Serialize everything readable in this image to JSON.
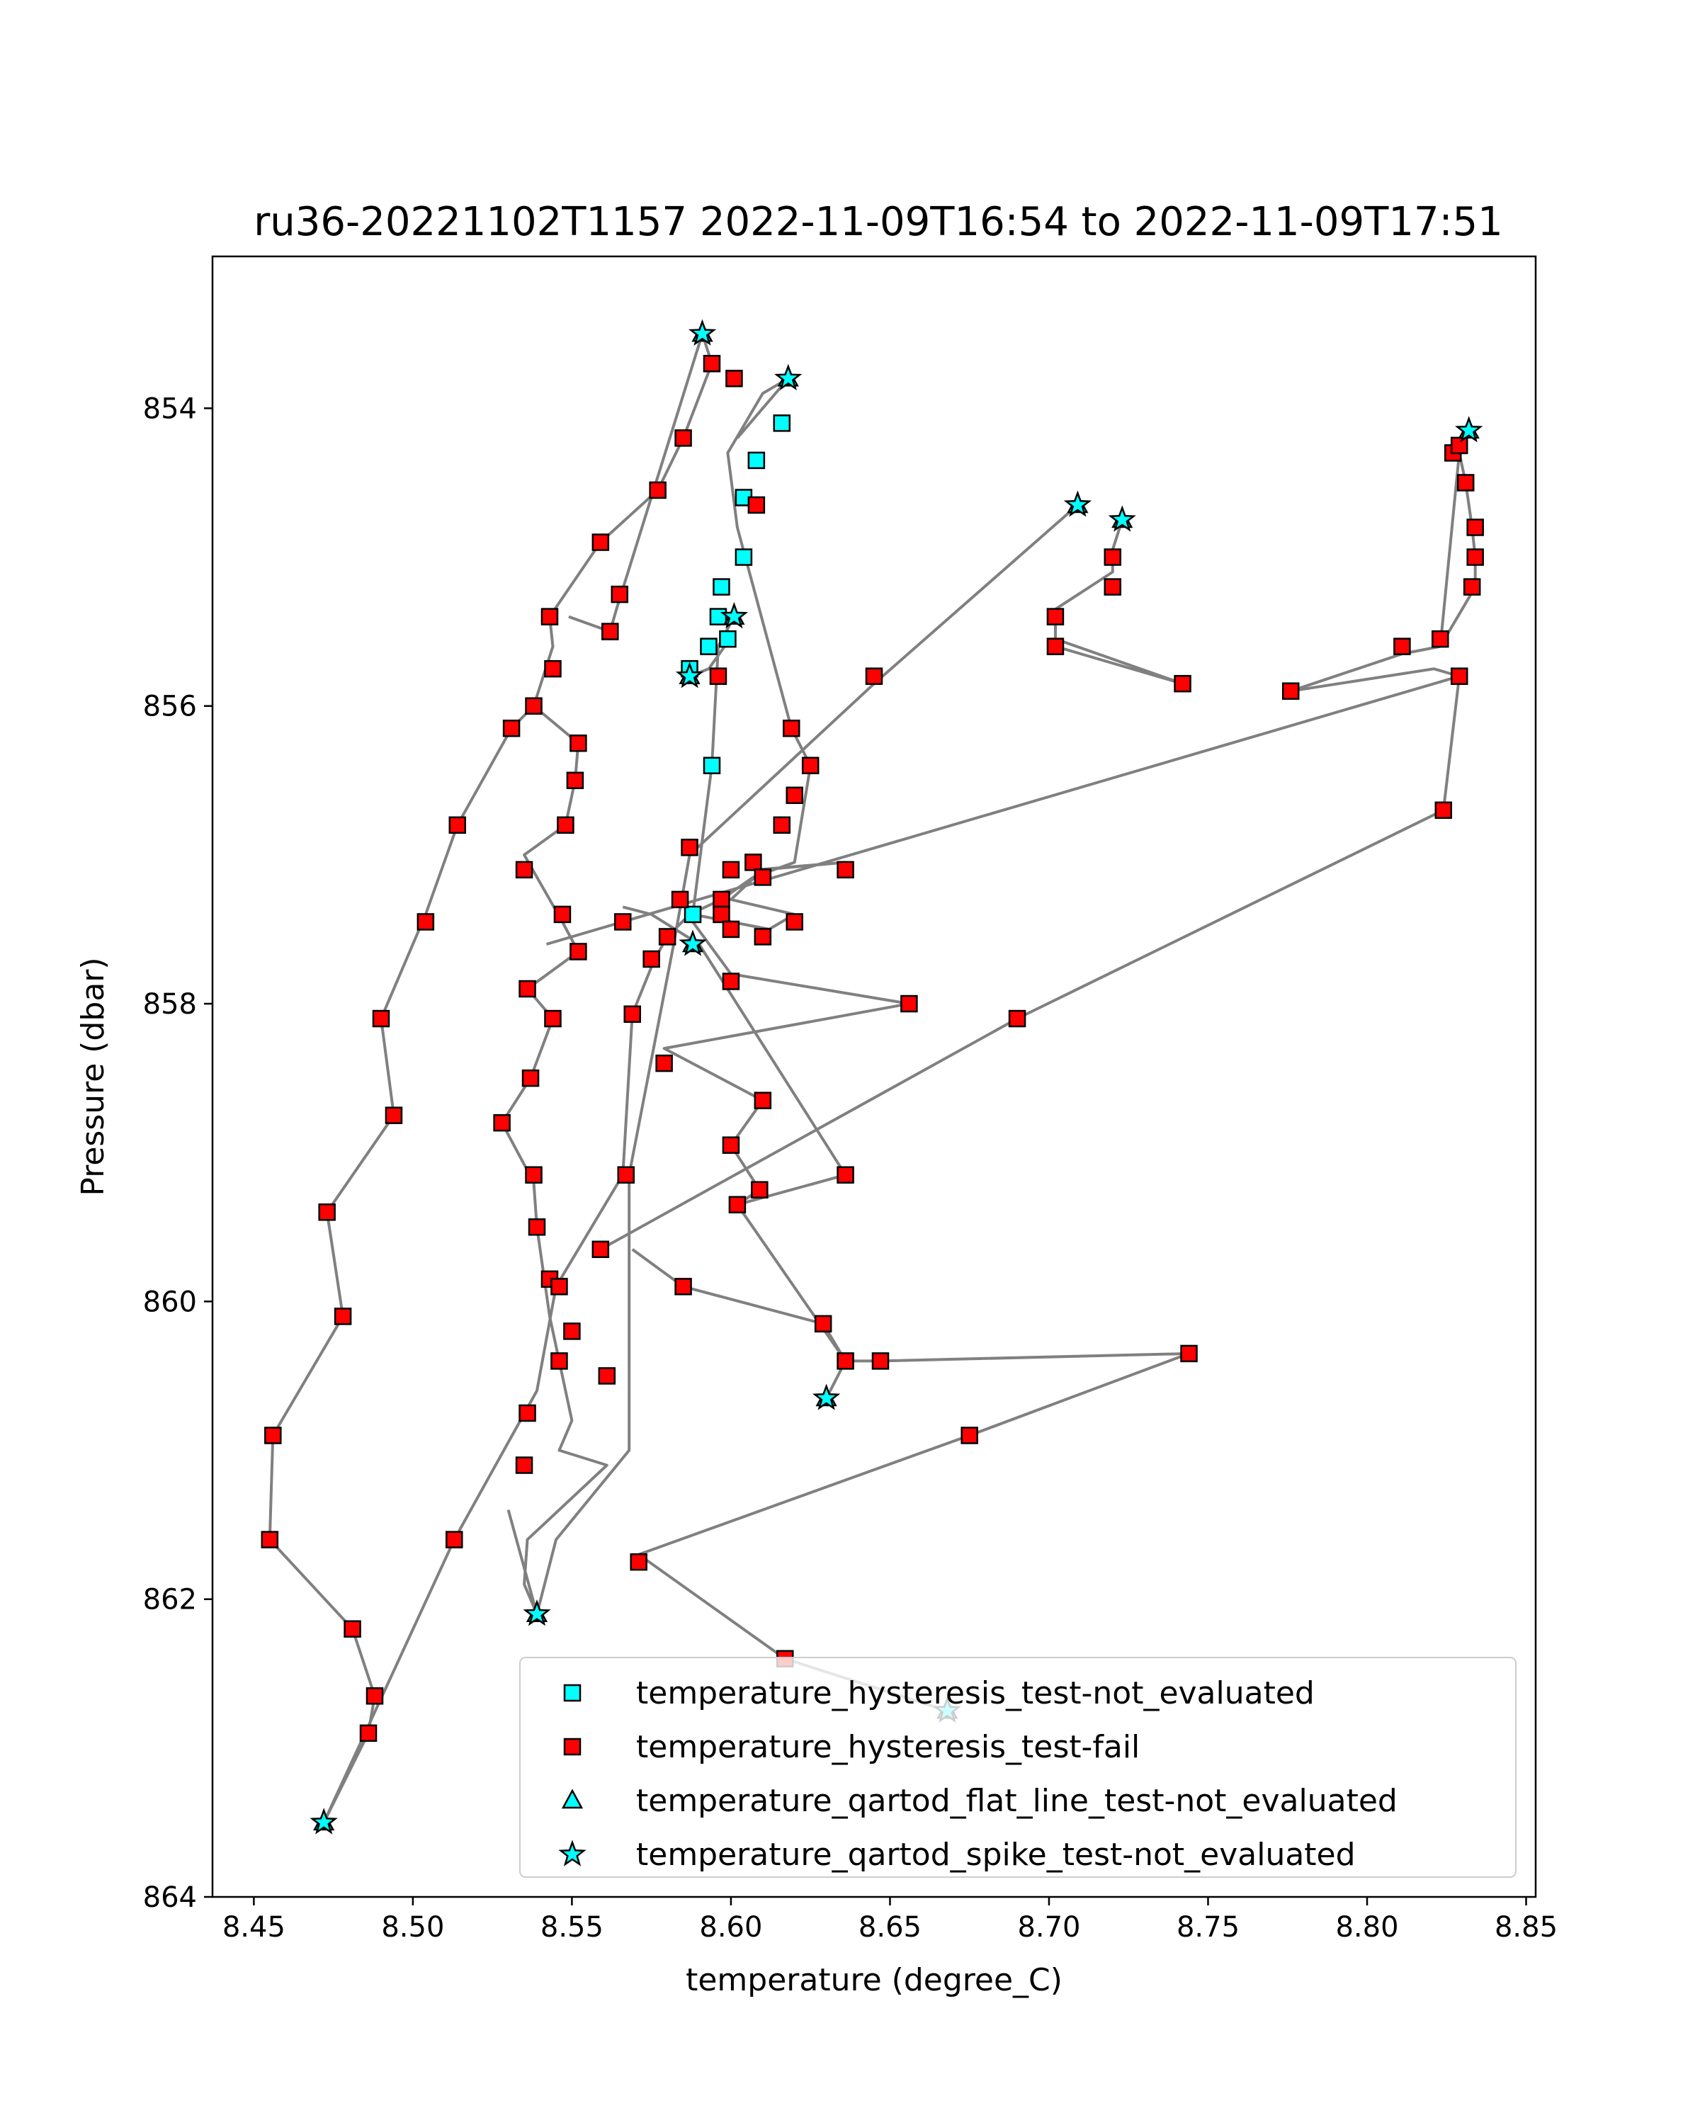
{
  "chart_data": {
    "type": "scatter",
    "title": "ru36-20221102T1157 2022-11-09T16:54 to 2022-11-09T17:51",
    "xlabel": "temperature (degree_C)",
    "ylabel": "Pressure (dbar)",
    "xlim": [
      8.437,
      8.853
    ],
    "ylim": [
      864.0,
      852.98
    ],
    "y_inverted": true,
    "grid": false,
    "legend_position": "lower-right",
    "xticks": [
      "8.45",
      "8.50",
      "8.55",
      "8.60",
      "8.65",
      "8.70",
      "8.75",
      "8.80",
      "8.85"
    ],
    "xtick_values": [
      8.45,
      8.5,
      8.55,
      8.6,
      8.65,
      8.7,
      8.75,
      8.8,
      8.85
    ],
    "yticks": [
      "854",
      "856",
      "858",
      "860",
      "862",
      "864"
    ],
    "ytick_values": [
      854,
      856,
      858,
      860,
      862,
      864
    ],
    "line_color": "#808080",
    "profiles": [
      [
        [
          8.591,
          853.5
        ],
        [
          8.594,
          853.7
        ],
        [
          8.585,
          854.2
        ],
        [
          8.577,
          854.55
        ],
        [
          8.559,
          854.9
        ],
        [
          8.543,
          855.4
        ],
        [
          8.544,
          855.6
        ],
        [
          8.538,
          856.0
        ],
        [
          8.531,
          856.15
        ],
        [
          8.514,
          856.8
        ],
        [
          8.504,
          857.4
        ],
        [
          8.49,
          858.1
        ],
        [
          8.494,
          858.75
        ],
        [
          8.473,
          859.4
        ],
        [
          8.478,
          860.1
        ],
        [
          8.456,
          860.9
        ],
        [
          8.455,
          861.6
        ],
        [
          8.481,
          862.2
        ],
        [
          8.488,
          862.65
        ],
        [
          8.486,
          862.9
        ],
        [
          8.472,
          863.5
        ]
      ],
      [
        [
          8.472,
          863.5
        ],
        [
          8.513,
          861.6
        ],
        [
          8.539,
          860.6
        ],
        [
          8.545,
          859.9
        ],
        [
          8.566,
          859.15
        ],
        [
          8.569,
          858.07
        ],
        [
          8.576,
          857.7
        ],
        [
          8.58,
          857.55
        ],
        [
          8.587,
          857.4
        ],
        [
          8.597,
          857.3
        ],
        [
          8.607,
          857.15
        ],
        [
          8.62,
          857.05
        ],
        [
          8.625,
          856.4
        ],
        [
          8.619,
          856.15
        ],
        [
          8.602,
          854.8
        ],
        [
          8.599,
          854.3
        ],
        [
          8.61,
          853.9
        ],
        [
          8.618,
          853.8
        ]
      ],
      [
        [
          8.601,
          855.4
        ],
        [
          8.596,
          855.6
        ],
        [
          8.594,
          856.4
        ],
        [
          8.588,
          857.4
        ]
      ],
      [
        [
          8.587,
          855.8
        ],
        [
          8.593,
          855.75
        ],
        [
          8.598,
          855.6
        ]
      ],
      [
        [
          8.602,
          854.2
        ],
        [
          8.618,
          853.8
        ]
      ],
      [
        [
          8.591,
          853.5
        ],
        [
          8.564,
          855.35
        ],
        [
          8.562,
          855.5
        ],
        [
          8.549,
          855.4
        ]
      ],
      [
        [
          8.53,
          861.4
        ],
        [
          8.539,
          862.1
        ],
        [
          8.535,
          861.9
        ],
        [
          8.536,
          861.6
        ],
        [
          8.561,
          861.1
        ],
        [
          8.546,
          861.0
        ],
        [
          8.55,
          860.8
        ],
        [
          8.543,
          860.1
        ],
        [
          8.539,
          859.5
        ],
        [
          8.538,
          859.2
        ],
        [
          8.528,
          858.8
        ],
        [
          8.537,
          858.5
        ],
        [
          8.544,
          858.1
        ],
        [
          8.536,
          857.9
        ],
        [
          8.552,
          857.65
        ],
        [
          8.547,
          857.45
        ],
        [
          8.535,
          857.0
        ],
        [
          8.548,
          856.8
        ],
        [
          8.551,
          856.5
        ],
        [
          8.552,
          856.25
        ],
        [
          8.538,
          856.0
        ]
      ],
      [
        [
          8.539,
          862.1
        ],
        [
          8.545,
          861.6
        ],
        [
          8.568,
          861.0
        ],
        [
          8.568,
          859.15
        ],
        [
          8.582,
          857.6
        ],
        [
          8.587,
          857.0
        ],
        [
          8.645,
          855.85
        ],
        [
          8.709,
          854.65
        ]
      ],
      [
        [
          8.569,
          859.65
        ],
        [
          8.585,
          859.9
        ],
        [
          8.629,
          860.15
        ],
        [
          8.636,
          860.4
        ],
        [
          8.647,
          860.4
        ],
        [
          8.744,
          860.35
        ]
      ],
      [
        [
          8.744,
          860.35
        ],
        [
          8.675,
          860.9
        ],
        [
          8.571,
          861.7
        ],
        [
          8.617,
          862.4
        ],
        [
          8.668,
          862.75
        ]
      ],
      [
        [
          8.63,
          860.65
        ],
        [
          8.636,
          860.4
        ],
        [
          8.602,
          859.35
        ],
        [
          8.609,
          859.25
        ],
        [
          8.6,
          858.95
        ],
        [
          8.61,
          858.65
        ],
        [
          8.579,
          858.3
        ],
        [
          8.656,
          858.0
        ],
        [
          8.6,
          857.8
        ],
        [
          8.588,
          857.45
        ]
      ],
      [
        [
          8.559,
          859.65
        ],
        [
          8.69,
          858.1
        ],
        [
          8.824,
          856.7
        ],
        [
          8.829,
          855.8
        ],
        [
          8.821,
          855.75
        ],
        [
          8.776,
          855.9
        ]
      ],
      [
        [
          8.776,
          855.9
        ],
        [
          8.811,
          855.65
        ],
        [
          8.823,
          855.6
        ],
        [
          8.834,
          855.2
        ],
        [
          8.834,
          855.0
        ],
        [
          8.833,
          854.8
        ],
        [
          8.831,
          854.5
        ],
        [
          8.829,
          854.3
        ],
        [
          8.827,
          854.3
        ],
        [
          8.832,
          854.15
        ]
      ],
      [
        [
          8.829,
          854.3
        ],
        [
          8.823,
          855.6
        ]
      ],
      [
        [
          8.542,
          857.6
        ],
        [
          8.829,
          855.8
        ]
      ],
      [
        [
          8.702,
          855.6
        ],
        [
          8.742,
          855.85
        ],
        [
          8.702,
          855.55
        ],
        [
          8.702,
          855.35
        ],
        [
          8.72,
          855.1
        ],
        [
          8.72,
          854.95
        ],
        [
          8.723,
          854.75
        ]
      ],
      [
        [
          8.588,
          857.4
        ],
        [
          8.612,
          857.5
        ],
        [
          8.62,
          857.4
        ],
        [
          8.6,
          857.3
        ],
        [
          8.61,
          857.1
        ],
        [
          8.636,
          857.05
        ],
        [
          8.608,
          857.1
        ]
      ],
      [
        [
          8.566,
          857.35
        ],
        [
          8.575,
          857.4
        ],
        [
          8.59,
          857.6
        ],
        [
          8.636,
          859.15
        ],
        [
          8.602,
          859.35
        ]
      ]
    ],
    "series": [
      {
        "name": "temperature_hysteresis_test-not_evaluated",
        "marker": "square",
        "color": "#00ffff",
        "points": [
          [
            8.616,
            854.1
          ],
          [
            8.608,
            854.35
          ],
          [
            8.604,
            854.6
          ],
          [
            8.604,
            855.0
          ],
          [
            8.597,
            855.2
          ],
          [
            8.596,
            855.4
          ],
          [
            8.599,
            855.55
          ],
          [
            8.593,
            855.6
          ],
          [
            8.587,
            855.75
          ],
          [
            8.594,
            856.4
          ],
          [
            8.588,
            857.4
          ]
        ]
      },
      {
        "name": "temperature_hysteresis_test-fail",
        "marker": "square",
        "color": "#ff0000",
        "points": [
          [
            8.594,
            853.7
          ],
          [
            8.601,
            853.8
          ],
          [
            8.585,
            854.2
          ],
          [
            8.577,
            854.55
          ],
          [
            8.608,
            854.65
          ],
          [
            8.559,
            854.9
          ],
          [
            8.565,
            855.25
          ],
          [
            8.543,
            855.4
          ],
          [
            8.562,
            855.5
          ],
          [
            8.596,
            855.8
          ],
          [
            8.544,
            855.75
          ],
          [
            8.538,
            856.0
          ],
          [
            8.531,
            856.15
          ],
          [
            8.552,
            856.25
          ],
          [
            8.619,
            856.15
          ],
          [
            8.625,
            856.4
          ],
          [
            8.551,
            856.5
          ],
          [
            8.62,
            856.6
          ],
          [
            8.548,
            856.8
          ],
          [
            8.514,
            856.8
          ],
          [
            8.616,
            856.8
          ],
          [
            8.587,
            856.95
          ],
          [
            8.607,
            857.05
          ],
          [
            8.6,
            857.1
          ],
          [
            8.61,
            857.15
          ],
          [
            8.535,
            857.1
          ],
          [
            8.636,
            857.1
          ],
          [
            8.597,
            857.3
          ],
          [
            8.584,
            857.3
          ],
          [
            8.597,
            857.4
          ],
          [
            8.547,
            857.4
          ],
          [
            8.566,
            857.45
          ],
          [
            8.504,
            857.45
          ],
          [
            8.6,
            857.5
          ],
          [
            8.62,
            857.45
          ],
          [
            8.61,
            857.55
          ],
          [
            8.58,
            857.55
          ],
          [
            8.552,
            857.65
          ],
          [
            8.575,
            857.7
          ],
          [
            8.6,
            857.85
          ],
          [
            8.536,
            857.9
          ],
          [
            8.656,
            858.0
          ],
          [
            8.569,
            858.07
          ],
          [
            8.49,
            858.1
          ],
          [
            8.544,
            858.1
          ],
          [
            8.69,
            858.1
          ],
          [
            8.579,
            858.4
          ],
          [
            8.537,
            858.5
          ],
          [
            8.61,
            858.65
          ],
          [
            8.494,
            858.75
          ],
          [
            8.528,
            858.8
          ],
          [
            8.6,
            858.95
          ],
          [
            8.567,
            859.15
          ],
          [
            8.538,
            859.15
          ],
          [
            8.636,
            859.15
          ],
          [
            8.609,
            859.25
          ],
          [
            8.473,
            859.4
          ],
          [
            8.602,
            859.35
          ],
          [
            8.539,
            859.5
          ],
          [
            8.559,
            859.65
          ],
          [
            8.543,
            859.85
          ],
          [
            8.546,
            859.9
          ],
          [
            8.585,
            859.9
          ],
          [
            8.478,
            860.1
          ],
          [
            8.629,
            860.15
          ],
          [
            8.55,
            860.2
          ],
          [
            8.744,
            860.35
          ],
          [
            8.647,
            860.4
          ],
          [
            8.636,
            860.4
          ],
          [
            8.546,
            860.4
          ],
          [
            8.561,
            860.5
          ],
          [
            8.536,
            860.75
          ],
          [
            8.456,
            860.9
          ],
          [
            8.675,
            860.9
          ],
          [
            8.535,
            861.1
          ],
          [
            8.455,
            861.6
          ],
          [
            8.513,
            861.6
          ],
          [
            8.571,
            861.75
          ],
          [
            8.481,
            862.2
          ],
          [
            8.617,
            862.4
          ],
          [
            8.488,
            862.65
          ],
          [
            8.486,
            862.9
          ],
          [
            8.827,
            854.3
          ],
          [
            8.829,
            854.25
          ],
          [
            8.831,
            854.5
          ],
          [
            8.834,
            854.8
          ],
          [
            8.834,
            855.0
          ],
          [
            8.833,
            855.2
          ],
          [
            8.823,
            855.55
          ],
          [
            8.811,
            855.6
          ],
          [
            8.829,
            855.8
          ],
          [
            8.776,
            855.9
          ],
          [
            8.824,
            856.7
          ],
          [
            8.72,
            855.0
          ],
          [
            8.72,
            855.2
          ],
          [
            8.702,
            855.4
          ],
          [
            8.702,
            855.6
          ],
          [
            8.742,
            855.85
          ],
          [
            8.645,
            855.8
          ]
        ]
      },
      {
        "name": "temperature_qartod_flat_line_test-not_evaluated",
        "marker": "triangle",
        "color": "#00ffff",
        "points": [
          [
            8.591,
            853.5
          ],
          [
            8.618,
            853.8
          ],
          [
            8.832,
            854.15
          ],
          [
            8.709,
            854.65
          ],
          [
            8.723,
            854.75
          ],
          [
            8.601,
            855.4
          ],
          [
            8.587,
            855.8
          ],
          [
            8.588,
            857.6
          ],
          [
            8.63,
            860.65
          ],
          [
            8.539,
            862.1
          ],
          [
            8.668,
            862.75
          ],
          [
            8.472,
            863.5
          ]
        ]
      },
      {
        "name": "temperature_qartod_spike_test-not_evaluated",
        "marker": "star",
        "color": "#00ffff",
        "points": [
          [
            8.591,
            853.5
          ],
          [
            8.618,
            853.8
          ],
          [
            8.832,
            854.15
          ],
          [
            8.709,
            854.65
          ],
          [
            8.723,
            854.75
          ],
          [
            8.601,
            855.4
          ],
          [
            8.587,
            855.8
          ],
          [
            8.588,
            857.6
          ],
          [
            8.63,
            860.65
          ],
          [
            8.539,
            862.1
          ],
          [
            8.668,
            862.75
          ],
          [
            8.472,
            863.5
          ]
        ]
      }
    ]
  }
}
